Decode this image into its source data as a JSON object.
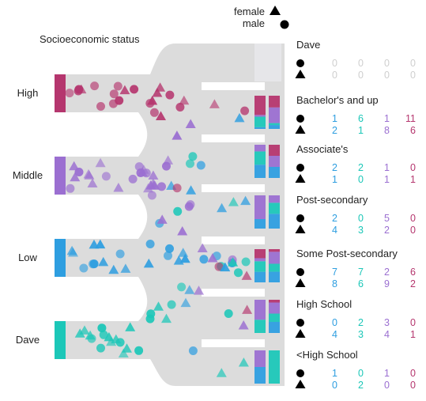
{
  "chart_data": {
    "type": "scatter",
    "title": "Socioeconomic status",
    "legend": {
      "placement": "top-center",
      "items": [
        {
          "label": "female",
          "marker": "triangle"
        },
        {
          "label": "male",
          "marker": "circle"
        }
      ]
    },
    "source_groups": [
      {
        "label": "High",
        "color": "#b5366e"
      },
      {
        "label": "Middle",
        "color": "#9b6fd1"
      },
      {
        "label": "Low",
        "color": "#2e9ee0"
      },
      {
        "label": "Dave",
        "color": "#1cc7b8"
      }
    ],
    "count_colors": [
      "#2e9ee0",
      "#1cc7b8",
      "#9b6fd1",
      "#b5366e"
    ],
    "outcomes": [
      {
        "label": "Dave",
        "male": [
          0,
          0,
          0,
          0
        ],
        "female": [
          0,
          0,
          0,
          0
        ]
      },
      {
        "label": "Bachelor's and up",
        "male": [
          1,
          6,
          1,
          11
        ],
        "female": [
          2,
          1,
          8,
          6
        ]
      },
      {
        "label": "Associate's",
        "male": [
          2,
          2,
          1,
          0
        ],
        "female": [
          1,
          0,
          1,
          1
        ]
      },
      {
        "label": "Post-secondary",
        "male": [
          2,
          0,
          5,
          0
        ],
        "female": [
          4,
          3,
          2,
          0
        ]
      },
      {
        "label": "Some Post-secondary",
        "male": [
          7,
          7,
          2,
          6
        ],
        "female": [
          8,
          6,
          9,
          2
        ]
      },
      {
        "label": "High School",
        "male": [
          0,
          2,
          3,
          0
        ],
        "female": [
          4,
          3,
          4,
          1
        ]
      },
      {
        "label": "<High School",
        "male": [
          1,
          0,
          1,
          0
        ],
        "female": [
          0,
          2,
          0,
          0
        ]
      }
    ]
  }
}
